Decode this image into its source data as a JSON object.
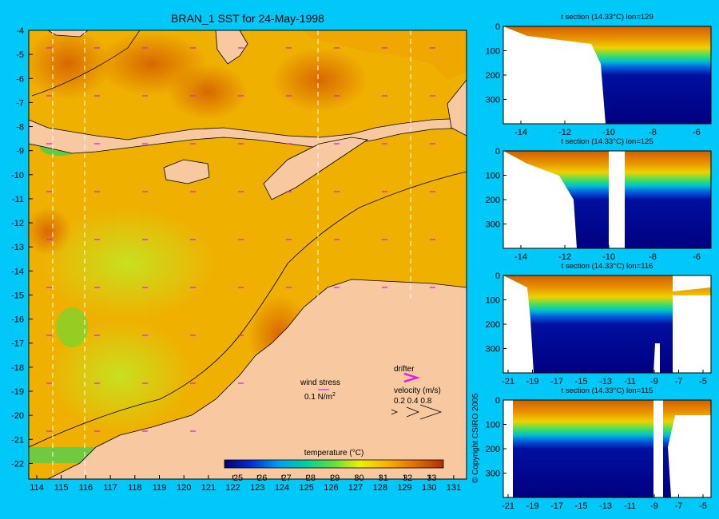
{
  "map": {
    "title": "BRAN_1 SST for 24-May-1998",
    "lat_labels": [
      "-4",
      "-5",
      "-6",
      "-7",
      "-8",
      "-9",
      "-10",
      "-11",
      "-12",
      "-13",
      "-14",
      "-15",
      "-16",
      "-17",
      "-18",
      "-19",
      "-20",
      "-21",
      "-22"
    ],
    "lon_labels": [
      "114",
      "115",
      "116",
      "117",
      "118",
      "119",
      "120",
      "121",
      "122",
      "123",
      "124",
      "125",
      "126",
      "127",
      "128",
      "129",
      "130",
      "131"
    ],
    "wind_label": "wind stress",
    "wind_scale": "0.1 N/m",
    "wind_scale_sup": "2",
    "drifter_label": "drifter",
    "velocity_label": "velocity (m/s)",
    "velocity_scale": "0.2 0.4 0.8",
    "colorbar_title": "temperature (°C)",
    "colorbar_ticks": [
      "25",
      "26",
      "27",
      "28",
      "29",
      "30",
      "31",
      "32",
      "33"
    ],
    "colors": {
      "land": "#f8c8a0",
      "background": "#00c8f8",
      "drifter": "#e020e0"
    }
  },
  "sections": [
    {
      "title": "t section (14.33°C) lon=129",
      "x_ticks": [
        "-14",
        "-12",
        "-10",
        "-8",
        "-6"
      ],
      "y_ticks": [
        "0",
        "100",
        "200",
        "300"
      ]
    },
    {
      "title": "t section (14.33°C) lon=125",
      "x_ticks": [
        "-14",
        "-12",
        "-10",
        "-8",
        "-6"
      ],
      "y_ticks": [
        "0",
        "100",
        "200",
        "300"
      ]
    },
    {
      "title": "t section (14.33°C) lon=116",
      "x_ticks": [
        "-21",
        "-19",
        "-17",
        "-15",
        "-13",
        "-11",
        "-9",
        "-7",
        "-5"
      ],
      "y_ticks": [
        "0",
        "100",
        "200",
        "300"
      ]
    },
    {
      "title": "t section (14.33°C) lon=115",
      "x_ticks": [
        "-21",
        "-19",
        "-17",
        "-15",
        "-13",
        "-11",
        "-9",
        "-7",
        "-5"
      ],
      "y_ticks": [
        "0",
        "100",
        "200",
        "300"
      ]
    }
  ],
  "copyright": "© Copyright CSIRO 2005"
}
